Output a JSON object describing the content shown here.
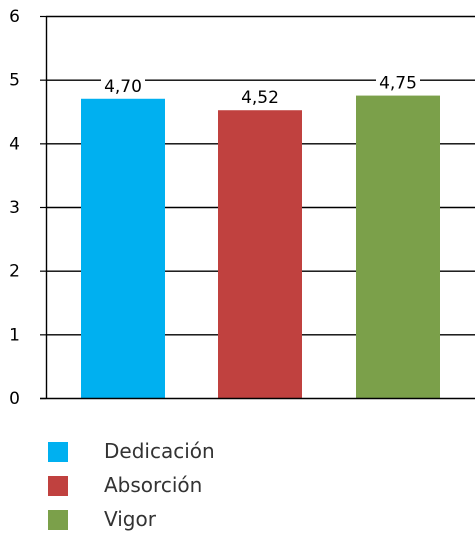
{
  "colors": {
    "background": "#ffffff",
    "axis": "#000000",
    "gridline": "#000000",
    "text": "#000000",
    "legend_text": "#333333"
  },
  "chart_data": {
    "type": "bar",
    "categories": [
      "Dedicación",
      "Absorción",
      "Vigor"
    ],
    "values": [
      4.7,
      4.52,
      4.75
    ],
    "data_labels": [
      "4,70",
      "4,52",
      "4,75"
    ],
    "colors": [
      "#00b0f0",
      "#c0413f",
      "#7ba04a"
    ],
    "ylim": [
      0,
      6
    ],
    "y_ticks": [
      0,
      1,
      2,
      3,
      4,
      5,
      6
    ],
    "y_tick_labels": [
      "0",
      "1",
      "2",
      "3",
      "4",
      "5",
      "6"
    ],
    "grid": true,
    "legend": {
      "position": "bottom-left",
      "items": [
        {
          "label": "Dedicación",
          "color": "#00b0f0"
        },
        {
          "label": "Absorción",
          "color": "#c0413f"
        },
        {
          "label": "Vigor",
          "color": "#7ba04a"
        }
      ]
    }
  }
}
